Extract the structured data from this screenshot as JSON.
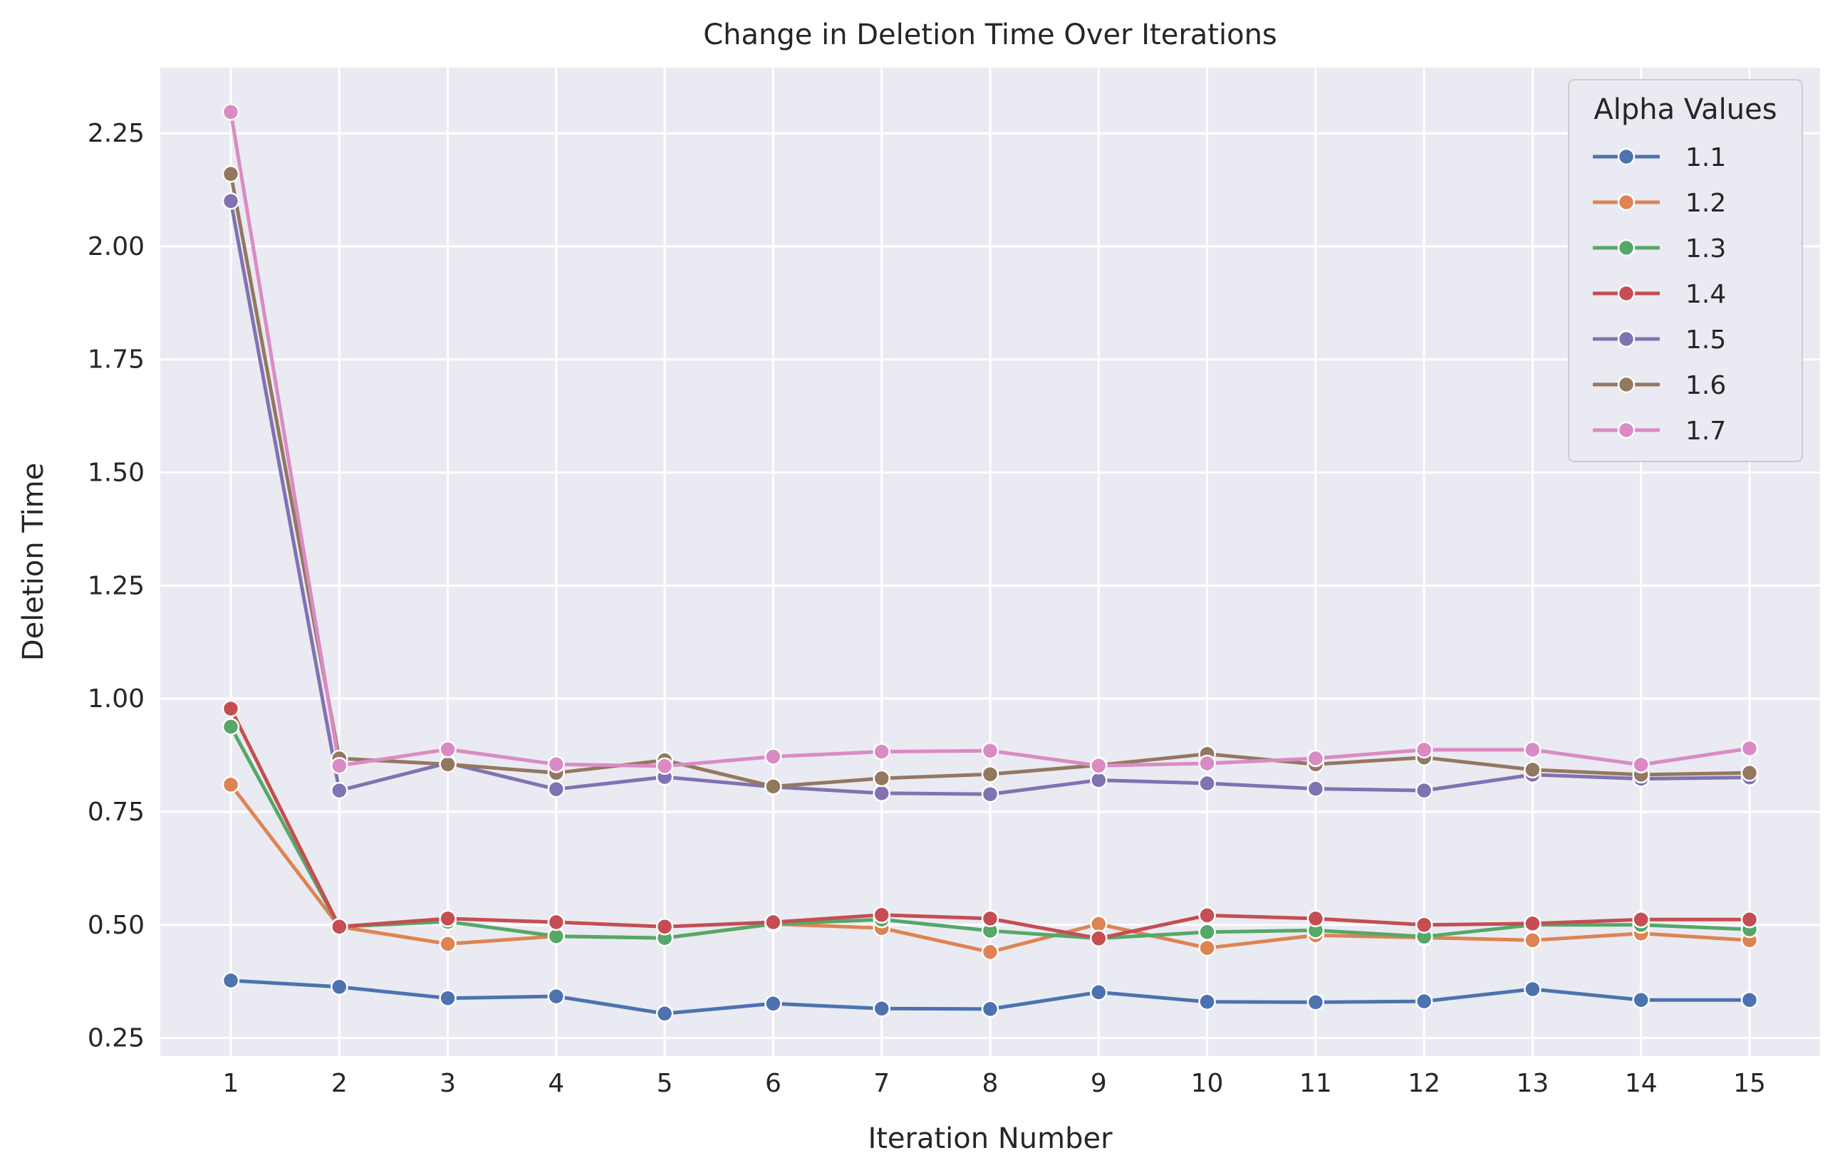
{
  "chart_data": {
    "type": "line",
    "title": "Change in Deletion Time Over Iterations",
    "xlabel": "Iteration Number",
    "ylabel": "Deletion Time",
    "x": [
      1,
      2,
      3,
      4,
      5,
      6,
      7,
      8,
      9,
      10,
      11,
      12,
      13,
      14,
      15
    ],
    "xlim": [
      0.35,
      15.65
    ],
    "ylim": [
      0.21,
      2.395
    ],
    "yticks": [
      0.25,
      0.5,
      0.75,
      1.0,
      1.25,
      1.5,
      1.75,
      2.0,
      2.25
    ],
    "ytick_labels": [
      "0.25",
      "0.50",
      "0.75",
      "1.00",
      "1.25",
      "1.50",
      "1.75",
      "2.00",
      "2.25"
    ],
    "xtick_labels": [
      "1",
      "2",
      "3",
      "4",
      "5",
      "6",
      "7",
      "8",
      "9",
      "10",
      "11",
      "12",
      "13",
      "14",
      "15"
    ],
    "grid": true,
    "background": "#eaeaf2",
    "legend": {
      "title": "Alpha Values",
      "position": "top-right"
    },
    "series": [
      {
        "name": "1.1",
        "color": "#4c72b0",
        "values": [
          0.377,
          0.363,
          0.338,
          0.342,
          0.304,
          0.326,
          0.315,
          0.314,
          0.351,
          0.33,
          0.329,
          0.331,
          0.358,
          0.334,
          0.334
        ]
      },
      {
        "name": "1.2",
        "color": "#dd8452",
        "values": [
          0.81,
          0.496,
          0.458,
          0.475,
          0.471,
          0.502,
          0.493,
          0.44,
          0.502,
          0.449,
          0.477,
          0.472,
          0.466,
          0.481,
          0.466
        ]
      },
      {
        "name": "1.3",
        "color": "#55a868",
        "values": [
          0.938,
          0.496,
          0.507,
          0.475,
          0.471,
          0.502,
          0.512,
          0.487,
          0.47,
          0.484,
          0.488,
          0.474,
          0.5,
          0.5,
          0.49
        ]
      },
      {
        "name": "1.4",
        "color": "#c44e52",
        "values": [
          0.978,
          0.496,
          0.514,
          0.506,
          0.496,
          0.506,
          0.522,
          0.514,
          0.47,
          0.521,
          0.514,
          0.5,
          0.503,
          0.512,
          0.512
        ]
      },
      {
        "name": "1.5",
        "color": "#8172b3",
        "values": [
          2.1,
          0.797,
          0.858,
          0.8,
          0.827,
          0.805,
          0.791,
          0.789,
          0.82,
          0.813,
          0.801,
          0.797,
          0.832,
          0.823,
          0.826
        ]
      },
      {
        "name": "1.6",
        "color": "#937860",
        "values": [
          2.16,
          0.868,
          0.855,
          0.836,
          0.864,
          0.806,
          0.824,
          0.833,
          0.853,
          0.878,
          0.855,
          0.87,
          0.843,
          0.832,
          0.836
        ]
      },
      {
        "name": "1.7",
        "color": "#da8bc3",
        "values": [
          2.297,
          0.852,
          0.888,
          0.855,
          0.851,
          0.872,
          0.883,
          0.885,
          0.852,
          0.857,
          0.868,
          0.887,
          0.887,
          0.854,
          0.89
        ]
      }
    ]
  }
}
